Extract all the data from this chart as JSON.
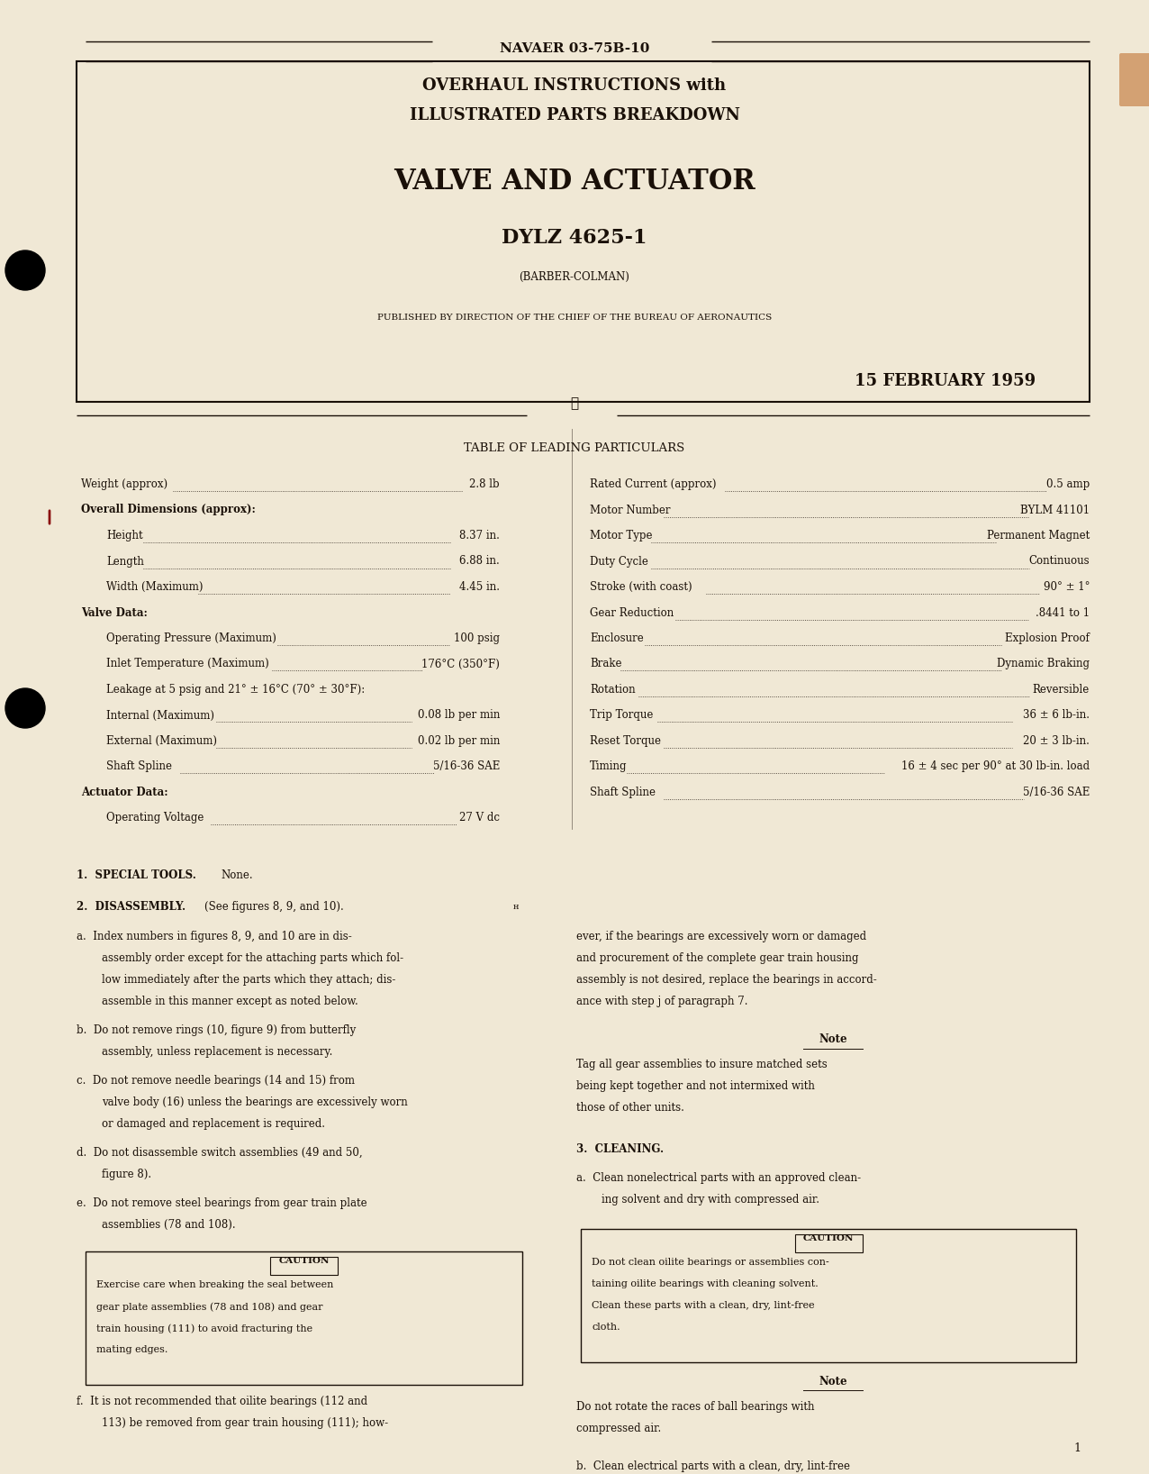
{
  "bg_color": "#f0e8d5",
  "text_color": "#1a1008",
  "header_line_color": "#1a1008",
  "navaer": "NAVAER 03-75B-10",
  "title_line1": "OVERHAUL INSTRUCTIONS with",
  "title_line2": "ILLUSTRATED PARTS BREAKDOWN",
  "main_title": "VALVE AND ACTUATOR",
  "part_number": "DYLZ 4625-1",
  "manufacturer": "(BARBER-COLMAN)",
  "published_by": "PUBLISHED BY DIRECTION OF THE CHIEF OF THE BUREAU OF AERONAUTICS",
  "date": "15 FEBRUARY 1959",
  "table_heading": "TABLE OF LEADING PARTICULARS",
  "page_number": "1"
}
